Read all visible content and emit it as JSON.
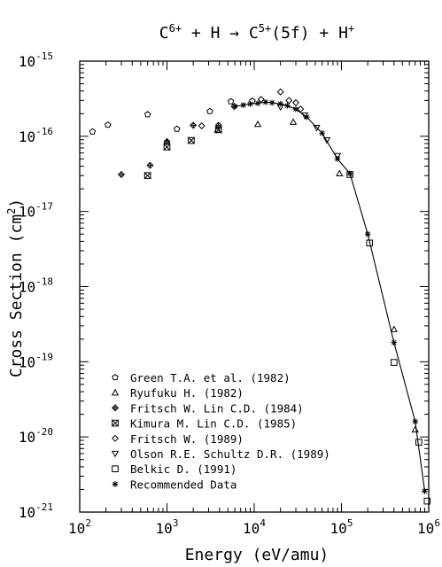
{
  "chart_data": {
    "type": "scatter",
    "title": {
      "parts": [
        {
          "text": "C",
          "sup": "6+"
        },
        {
          "text": " + H → C",
          "sup": "5+"
        },
        {
          "text": "(5f) + H",
          "sup": "+"
        }
      ]
    },
    "xlabel": "Energy (eV/amu)",
    "ylabel": {
      "base": "Cross Section (cm",
      "sup": "2",
      "end": ")"
    },
    "x_scale": "log",
    "y_scale": "log",
    "xlim": [
      100,
      1000000
    ],
    "ylim": [
      1e-21,
      1e-15
    ],
    "x_ticks": [
      {
        "base": "10",
        "exp": "2",
        "value": 100
      },
      {
        "base": "10",
        "exp": "3",
        "value": 1000
      },
      {
        "base": "10",
        "exp": "4",
        "value": 10000
      },
      {
        "base": "10",
        "exp": "5",
        "value": 100000
      },
      {
        "base": "10",
        "exp": "6",
        "value": 1000000
      }
    ],
    "y_ticks": [
      {
        "base": "10",
        "exp": "-15",
        "value": 1e-15
      },
      {
        "base": "10",
        "exp": "-16",
        "value": 1e-16
      },
      {
        "base": "10",
        "exp": "-17",
        "value": 1e-17
      },
      {
        "base": "10",
        "exp": "-18",
        "value": 1e-18
      },
      {
        "base": "10",
        "exp": "-19",
        "value": 1e-19
      },
      {
        "base": "10",
        "exp": "-20",
        "value": 1e-20
      },
      {
        "base": "10",
        "exp": "-21",
        "value": 1e-21
      }
    ],
    "legend_position": "bottom-left",
    "series": [
      {
        "name": "Green T.A. et al. (1982)",
        "marker": "pentagon",
        "points": [
          [
            140,
            1.15e-16
          ],
          [
            210,
            1.42e-16
          ],
          [
            600,
            1.95e-16
          ],
          [
            1300,
            1.25e-16
          ],
          [
            3100,
            2.15e-16
          ],
          [
            5400,
            2.9e-16
          ],
          [
            9500,
            2.95e-16
          ]
        ]
      },
      {
        "name": "Ryufuku H. (1982)",
        "marker": "triangle-up",
        "points": [
          [
            1000,
            8.5e-17
          ],
          [
            3800,
            1.22e-16
          ],
          [
            11000,
            1.45e-16
          ],
          [
            28000,
            1.55e-16
          ],
          [
            95000,
            3.2e-17
          ],
          [
            400000,
            2.7e-19
          ],
          [
            700000,
            1.25e-20
          ]
        ]
      },
      {
        "name": "Fritsch W. Lin C.D. (1984)",
        "marker": "plus-diamond",
        "points": [
          [
            300,
            3.1e-17
          ],
          [
            640,
            4.1e-17
          ],
          [
            1000,
            8.5e-17
          ],
          [
            2000,
            1.4e-16
          ],
          [
            3900,
            1.4e-16
          ]
        ]
      },
      {
        "name": "Kimura M. Lin C.D. (1985)",
        "marker": "hourglass",
        "points": [
          [
            600,
            3e-17
          ],
          [
            1000,
            7.2e-17
          ],
          [
            1900,
            8.8e-17
          ],
          [
            3900,
            1.22e-16
          ]
        ]
      },
      {
        "name": "Fritsch W. (1989)",
        "marker": "diamond",
        "points": [
          [
            2500,
            1.38e-16
          ],
          [
            5900,
            2.5e-16
          ],
          [
            12000,
            3.1e-16
          ],
          [
            20000,
            3.9e-16
          ],
          [
            25000,
            3e-16
          ],
          [
            30000,
            2.8e-16
          ],
          [
            34000,
            2.3e-16
          ]
        ]
      },
      {
        "name": "Olson R.E. Schultz D.R. (1989)",
        "marker": "triangle-down",
        "points": [
          [
            20000,
            2.45e-16
          ],
          [
            38000,
            1.9e-16
          ],
          [
            52000,
            1.3e-16
          ],
          [
            68000,
            8.9e-17
          ],
          [
            90000,
            5.5e-17
          ]
        ]
      },
      {
        "name": "Belkic D. (1991)",
        "marker": "square",
        "points": [
          [
            125000,
            3.1e-17
          ],
          [
            210000,
            3.8e-18
          ],
          [
            400000,
            9.8e-20
          ],
          [
            770000,
            8.5e-21
          ],
          [
            960000,
            1.4e-21
          ]
        ]
      },
      {
        "name": "Recommended Data",
        "marker": "asterisk",
        "line": true,
        "points": [
          [
            6000,
            2.5e-16
          ],
          [
            7500,
            2.6e-16
          ],
          [
            9000,
            2.7e-16
          ],
          [
            11000,
            2.75e-16
          ],
          [
            13500,
            2.85e-16
          ],
          [
            16000,
            2.8e-16
          ],
          [
            20000,
            2.7e-16
          ],
          [
            24000,
            2.55e-16
          ],
          [
            30000,
            2.3e-16
          ],
          [
            40000,
            1.8e-16
          ],
          [
            60000,
            1.1e-16
          ],
          [
            90000,
            5e-17
          ],
          [
            125000,
            3.2e-17
          ],
          [
            200000,
            5e-18
          ],
          [
            400000,
            1.8e-19
          ],
          [
            700000,
            1.6e-20
          ],
          [
            900000,
            1.9e-21
          ]
        ]
      }
    ]
  }
}
